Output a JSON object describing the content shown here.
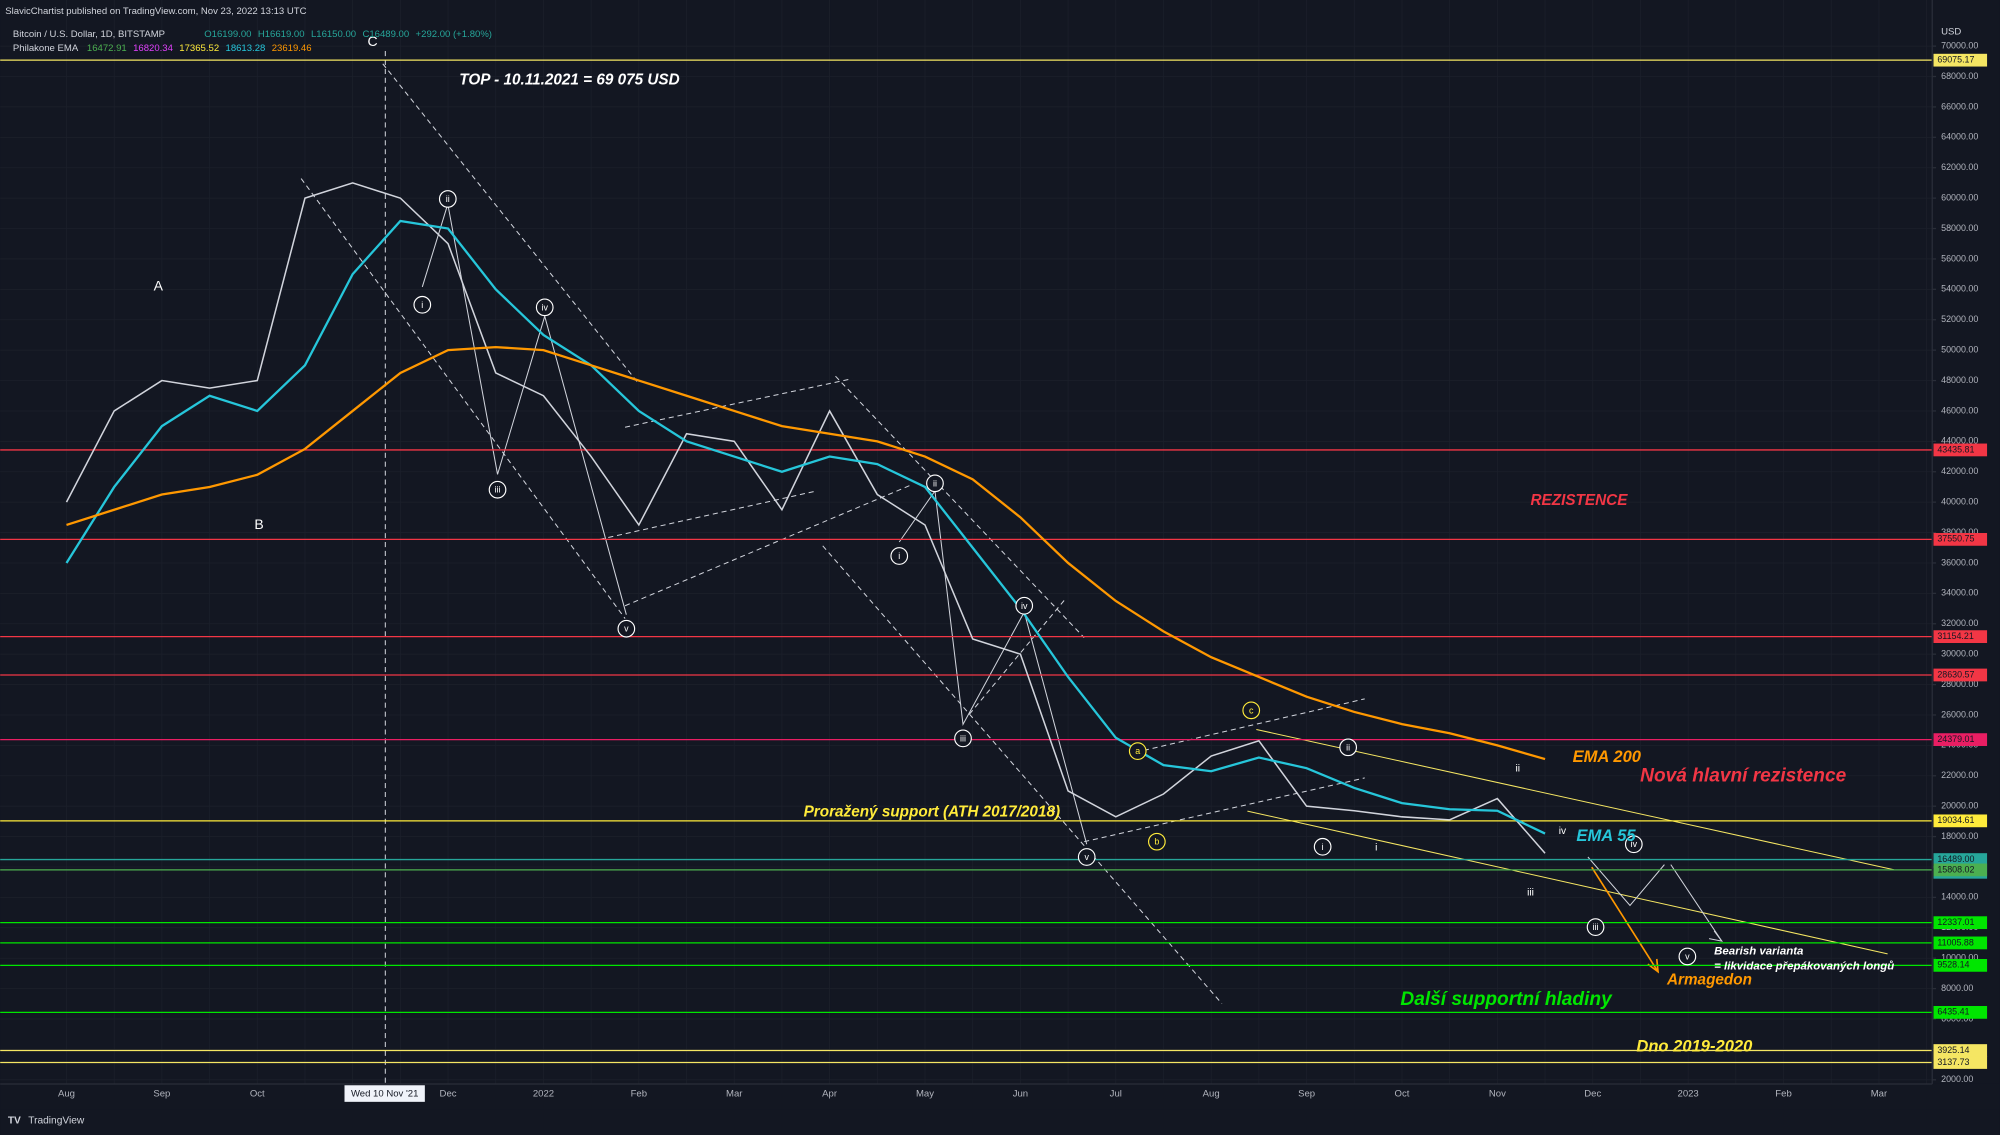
{
  "header": {
    "publisher": "SlavicChartist published on TradingView.com, Nov 23, 2022 13:13 UTC",
    "symbol": "Bitcoin / U.S. Dollar, 1D, BITSTAMP",
    "ohlc": [
      "O16199.00",
      "H16619.00",
      "L16150.00",
      "C16489.00",
      "+292.00 (+1.80%)"
    ],
    "indicator": {
      "name": "Philakone EMA",
      "values": [
        {
          "value": 16472.91,
          "color": "#4caf50"
        },
        {
          "value": 16820.34,
          "color": "#e040fb"
        },
        {
          "value": 17365.52,
          "color": "#ffeb3b"
        },
        {
          "value": 18613.28,
          "color": "#26c6da"
        },
        {
          "value": 23619.46,
          "color": "#ff9800"
        }
      ]
    }
  },
  "footer": "TradingView",
  "chart_data": {
    "type": "line",
    "y_unit": "USD",
    "crosshair_label": "Wed 10 Nov '21",
    "categories": [
      "Aug",
      null,
      "Sep",
      null,
      "Oct",
      null,
      null,
      null,
      "Dec",
      null,
      "2022",
      null,
      "Feb",
      null,
      "Mar",
      null,
      "Apr",
      null,
      "May",
      null,
      "Jun",
      null,
      "Jul",
      null,
      "Aug",
      null,
      "Sep",
      null,
      "Oct",
      null,
      "Nov",
      null,
      "Dec",
      null,
      "2023",
      null,
      "Feb",
      null,
      "Mar",
      null
    ],
    "series": [
      {
        "color": "#d1d4dc",
        "values": [
          40000,
          46000,
          48000,
          47500,
          48000,
          60000,
          61000,
          60000,
          57000,
          48500,
          47000,
          43000,
          38500,
          44500,
          44000,
          39500,
          46000,
          40500,
          38500,
          31000,
          30000,
          21000,
          19300,
          20800,
          23300,
          24300,
          20000,
          19700,
          19300,
          19100,
          20500,
          16900,
          null,
          null,
          null,
          null,
          null,
          null,
          null,
          null
        ]
      },
      {
        "color": "#26c6da",
        "values": [
          36000,
          41000,
          45000,
          47000,
          46000,
          49000,
          55000,
          58500,
          58000,
          54000,
          51000,
          49000,
          46000,
          44000,
          43000,
          42000,
          43000,
          42500,
          41000,
          37000,
          33000,
          28500,
          24500,
          22700,
          22300,
          23200,
          22500,
          21200,
          20200,
          19800,
          19700,
          18200,
          null,
          null,
          null,
          null,
          null,
          null,
          null,
          null
        ]
      },
      {
        "color": "#ff9800",
        "values": [
          38500,
          39500,
          40500,
          41000,
          41800,
          43500,
          46000,
          48500,
          50000,
          50200,
          50000,
          49000,
          48000,
          47000,
          46000,
          45000,
          44500,
          44000,
          43000,
          41500,
          39000,
          36000,
          33500,
          31500,
          29800,
          28500,
          27200,
          26200,
          25400,
          24800,
          24000,
          23100,
          null,
          null,
          null,
          null,
          null,
          null,
          null,
          null
        ]
      }
    ],
    "levels": [
      {
        "value": 69075.17,
        "color": "#f5e663"
      },
      {
        "value": 43435.81,
        "color": "#f23645"
      },
      {
        "value": 37550.75,
        "color": "#f23645"
      },
      {
        "value": 31154.21,
        "color": "#f23645"
      },
      {
        "value": 28630.57,
        "color": "#f23645"
      },
      {
        "value": 24379.01,
        "color": "#e91e63"
      },
      {
        "value": 19034.61,
        "color": "#ffeb3b"
      },
      {
        "value": 16489,
        "label": "16489.00",
        "color": "#26a69a"
      },
      {
        "value": 15808.02,
        "color": "#4caf50"
      },
      {
        "value": 12337.01,
        "color": "#00e600"
      },
      {
        "value": 11005.88,
        "color": "#00e600"
      },
      {
        "value": 9528.14,
        "color": "#00e600"
      },
      {
        "value": 6435.41,
        "color": "#00e600"
      },
      {
        "value": 3925.14,
        "color": "#f5e663"
      },
      {
        "value": 3137.73,
        "color": "#f5e663"
      }
    ],
    "countdown": "10:46:35",
    "ylim": [
      1700,
      73000
    ],
    "yticks": [
      {
        "value": 2000,
        "label": "2000.00"
      },
      {
        "value": 4000,
        "label": "4000.00"
      },
      {
        "value": 6000,
        "label": "6000.00"
      },
      {
        "value": 8000,
        "label": "8000.00"
      },
      {
        "value": 10000,
        "label": "10000.00"
      },
      {
        "value": 12000,
        "label": "12000.00"
      },
      {
        "value": 14000,
        "label": "14000.00"
      },
      {
        "value": 16000,
        "label": "16000.00"
      },
      {
        "value": 18000,
        "label": "18000.00"
      },
      {
        "value": 20000,
        "label": "20000.00"
      },
      {
        "value": 22000,
        "label": "22000.00"
      },
      {
        "value": 24000,
        "label": "24000.00"
      },
      {
        "value": 26000,
        "label": "26000.00"
      },
      {
        "value": 28000,
        "label": "28000.00"
      },
      {
        "value": 30000,
        "label": "30000.00"
      },
      {
        "value": 32000,
        "label": "32000.00"
      },
      {
        "value": 34000,
        "label": "34000.00"
      },
      {
        "value": 36000,
        "label": "36000.00"
      },
      {
        "value": 38000,
        "label": "38000.00"
      },
      {
        "value": 40000,
        "label": "40000.00"
      },
      {
        "value": 42000,
        "label": "42000.00"
      },
      {
        "value": 44000,
        "label": "44000.00"
      },
      {
        "value": 46000,
        "label": "46000.00"
      },
      {
        "value": 48000,
        "label": "48000.00"
      },
      {
        "value": 50000,
        "label": "50000.00"
      },
      {
        "value": 52000,
        "label": "52000.00"
      },
      {
        "value": 54000,
        "label": "54000.00"
      },
      {
        "value": 56000,
        "label": "56000.00"
      },
      {
        "value": 58000,
        "label": "58000.00"
      },
      {
        "value": 60000,
        "label": "60000.00"
      },
      {
        "value": 62000,
        "label": "62000.00"
      },
      {
        "value": 64000,
        "label": "64000.00"
      },
      {
        "value": 66000,
        "label": "66000.00"
      },
      {
        "value": 68000,
        "label": "68000.00"
      },
      {
        "value": 70000,
        "label": "70000.00"
      }
    ],
    "grid": true,
    "wave_labels": [
      {
        "text": "ii",
        "color": "#ffffff"
      },
      {
        "text": "i",
        "color": "#ffffff"
      },
      {
        "text": "iv",
        "color": "#ffffff"
      },
      {
        "text": "iii",
        "color": "#ffffff"
      },
      {
        "text": "v",
        "color": "#ffffff"
      },
      {
        "text": "ii",
        "color": "#ffffff"
      },
      {
        "text": "i",
        "color": "#ffffff"
      },
      {
        "text": "iv",
        "color": "#ffffff"
      },
      {
        "text": "iii",
        "color": "#ffffff"
      },
      {
        "text": "v",
        "color": "#ffffff"
      },
      {
        "text": "a",
        "color": "#ffeb3b"
      },
      {
        "text": "b",
        "color": "#ffeb3b"
      },
      {
        "text": "c",
        "color": "#ffeb3b"
      },
      {
        "text": "ii",
        "color": "#ffffff"
      },
      {
        "text": "i",
        "color": "#ffffff"
      },
      {
        "text": "iv",
        "color": "#ffffff"
      },
      {
        "text": "iii",
        "color": "#ffffff"
      },
      {
        "text": "v",
        "color": "#ffffff"
      }
    ],
    "annotations": [
      {
        "text": "TOP - 10.11.2021 = 69 075 USD",
        "color": "#ffffff"
      },
      {
        "text": "A",
        "color": "#ffffff"
      },
      {
        "text": "B",
        "color": "#ffffff"
      },
      {
        "text": "C",
        "color": "#ffffff"
      },
      {
        "text": "i",
        "color": "#ffffff"
      },
      {
        "text": "ii",
        "color": "#ffffff"
      },
      {
        "text": "iv",
        "color": "#ffffff"
      },
      {
        "text": "iii",
        "color": "#ffffff"
      },
      {
        "text": "REZISTENCE",
        "color": "#f23645"
      },
      {
        "text": "EMA 200",
        "color": "#ff9800"
      },
      {
        "text": "Nová hlavní rezistence",
        "color": "#f23645"
      },
      {
        "text": "Proražený support (ATH 2017/2018)",
        "color": "#ffeb3b"
      },
      {
        "text": "EMA 55",
        "color": "#26c6da"
      },
      {
        "text": "Bearish varianta",
        "color": "#ffffff"
      },
      {
        "text": "= likvidace přepákovaných longů",
        "color": "#ffffff"
      },
      {
        "text": "Armagedon",
        "color": "#ff9800"
      },
      {
        "text": "Další supportní hladiny",
        "color": "#00e600"
      },
      {
        "text": "Dno 2019-2020",
        "color": "#ffeb3b"
      }
    ]
  }
}
